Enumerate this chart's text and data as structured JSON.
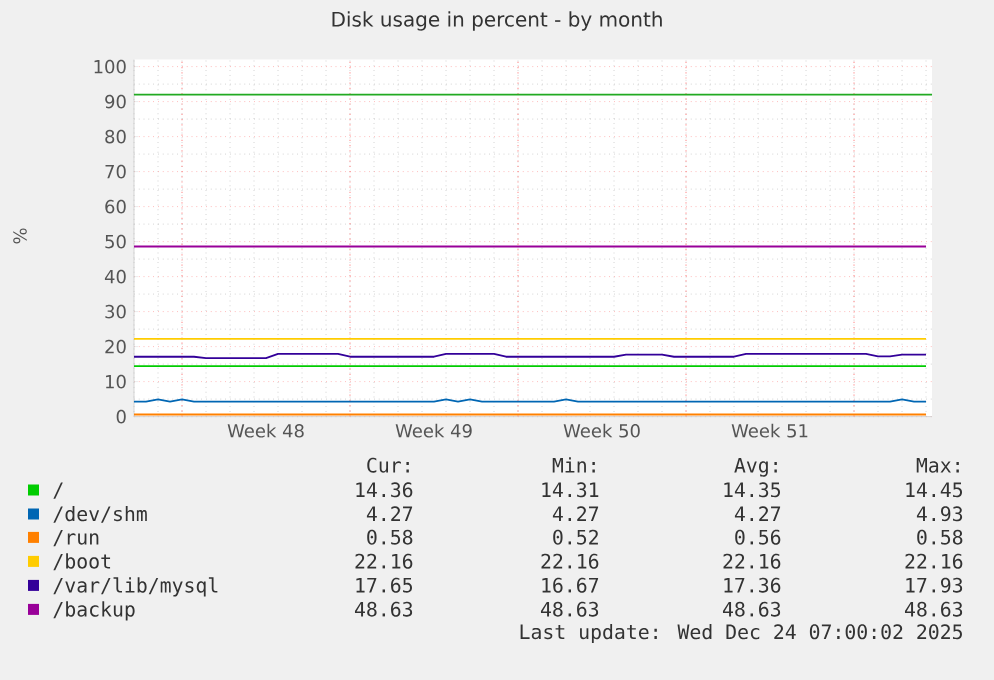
{
  "chart_data": {
    "type": "line",
    "title": "Disk usage in percent - by month",
    "ylabel": "%",
    "categories": [
      null,
      null,
      null,
      null,
      null,
      null,
      null,
      null,
      null,
      null,
      null,
      "Week 48",
      null,
      null,
      null,
      null,
      null,
      null,
      null,
      null,
      null,
      null,
      null,
      null,
      null,
      "Week 49",
      null,
      null,
      null,
      null,
      null,
      null,
      null,
      null,
      null,
      null,
      null,
      null,
      null,
      "Week 50",
      null,
      null,
      null,
      null,
      null,
      null,
      null,
      null,
      null,
      null,
      null,
      null,
      null,
      "Week 51",
      null,
      null,
      null,
      null,
      null,
      null,
      null,
      null,
      null,
      null,
      null,
      null,
      null
    ],
    "ylim": [
      0,
      102
    ],
    "yticks": [
      0,
      10,
      20,
      30,
      40,
      50,
      60,
      70,
      80,
      90,
      100
    ],
    "grid": true,
    "legend": "bottom",
    "marker": "none",
    "line_style": "solid",
    "series": [
      {
        "name": "/",
        "color": "#00cc00",
        "values": [
          14.4,
          14.4,
          14.4,
          14.4,
          14.4,
          14.4,
          14.4,
          14.4,
          14.4,
          14.4,
          14.4,
          14.4,
          14.4,
          14.4,
          14.4,
          14.4,
          14.4,
          14.4,
          14.4,
          14.4,
          14.4,
          14.4,
          14.4,
          14.4,
          14.4,
          14.4,
          14.4,
          14.4,
          14.4,
          14.4,
          14.4,
          14.4,
          14.4,
          14.4,
          14.4,
          14.4,
          14.4,
          14.4,
          14.4,
          14.4,
          14.4,
          14.4,
          14.4,
          14.4,
          14.4,
          14.4,
          14.4,
          14.4,
          14.4,
          14.4,
          14.4,
          14.4,
          14.4,
          14.4,
          14.4,
          14.4,
          14.4,
          14.4,
          14.4,
          14.4,
          14.4,
          14.4,
          14.4,
          14.4,
          14.4,
          14.4,
          14.4
        ]
      },
      {
        "name": "/dev/shm",
        "color": "#0066b3",
        "values": [
          4.3,
          4.3,
          4.9,
          4.3,
          4.9,
          4.3,
          4.3,
          4.3,
          4.3,
          4.3,
          4.3,
          4.3,
          4.3,
          4.3,
          4.3,
          4.3,
          4.3,
          4.3,
          4.3,
          4.3,
          4.3,
          4.3,
          4.3,
          4.3,
          4.3,
          4.3,
          4.9,
          4.3,
          4.9,
          4.3,
          4.3,
          4.3,
          4.3,
          4.3,
          4.3,
          4.3,
          4.9,
          4.3,
          4.3,
          4.3,
          4.3,
          4.3,
          4.3,
          4.3,
          4.3,
          4.3,
          4.3,
          4.3,
          4.3,
          4.3,
          4.3,
          4.3,
          4.3,
          4.3,
          4.3,
          4.3,
          4.3,
          4.3,
          4.3,
          4.3,
          4.3,
          4.3,
          4.3,
          4.3,
          4.9,
          4.3,
          4.3
        ]
      },
      {
        "name": "/run",
        "color": "#ff8000",
        "values": [
          0.6,
          0.6,
          0.6,
          0.6,
          0.6,
          0.6,
          0.6,
          0.6,
          0.6,
          0.6,
          0.6,
          0.6,
          0.6,
          0.6,
          0.6,
          0.6,
          0.6,
          0.6,
          0.6,
          0.6,
          0.6,
          0.6,
          0.6,
          0.6,
          0.6,
          0.6,
          0.6,
          0.6,
          0.6,
          0.6,
          0.6,
          0.6,
          0.6,
          0.6,
          0.6,
          0.6,
          0.6,
          0.6,
          0.6,
          0.6,
          0.6,
          0.6,
          0.6,
          0.6,
          0.6,
          0.6,
          0.6,
          0.6,
          0.6,
          0.6,
          0.6,
          0.6,
          0.6,
          0.6,
          0.6,
          0.6,
          0.6,
          0.6,
          0.6,
          0.6,
          0.6,
          0.6,
          0.6,
          0.6,
          0.6,
          0.6,
          0.6
        ]
      },
      {
        "name": "/boot",
        "color": "#ffcc00",
        "values": [
          22.2,
          22.2,
          22.2,
          22.2,
          22.2,
          22.2,
          22.2,
          22.2,
          22.2,
          22.2,
          22.2,
          22.2,
          22.2,
          22.2,
          22.2,
          22.2,
          22.2,
          22.2,
          22.2,
          22.2,
          22.2,
          22.2,
          22.2,
          22.2,
          22.2,
          22.2,
          22.2,
          22.2,
          22.2,
          22.2,
          22.2,
          22.2,
          22.2,
          22.2,
          22.2,
          22.2,
          22.2,
          22.2,
          22.2,
          22.2,
          22.2,
          22.2,
          22.2,
          22.2,
          22.2,
          22.2,
          22.2,
          22.2,
          22.2,
          22.2,
          22.2,
          22.2,
          22.2,
          22.2,
          22.2,
          22.2,
          22.2,
          22.2,
          22.2,
          22.2,
          22.2,
          22.2,
          22.2,
          22.2,
          22.2,
          22.2,
          22.2
        ]
      },
      {
        "name": "/var/lib/mysql",
        "color": "#330099",
        "values": [
          17.1,
          17.1,
          17.1,
          17.1,
          17.1,
          17.1,
          16.7,
          16.7,
          16.7,
          16.7,
          16.7,
          16.7,
          17.9,
          17.9,
          17.9,
          17.9,
          17.9,
          17.9,
          17.1,
          17.1,
          17.1,
          17.1,
          17.1,
          17.1,
          17.1,
          17.1,
          17.9,
          17.9,
          17.9,
          17.9,
          17.9,
          17.1,
          17.1,
          17.1,
          17.1,
          17.1,
          17.1,
          17.1,
          17.1,
          17.1,
          17.1,
          17.7,
          17.7,
          17.7,
          17.7,
          17.1,
          17.1,
          17.1,
          17.1,
          17.1,
          17.1,
          17.9,
          17.9,
          17.9,
          17.9,
          17.9,
          17.9,
          17.9,
          17.9,
          17.9,
          17.9,
          17.9,
          17.2,
          17.2,
          17.7,
          17.7,
          17.7
        ]
      },
      {
        "name": "/backup",
        "color": "#990099",
        "values": [
          48.6,
          48.6,
          48.6,
          48.6,
          48.6,
          48.6,
          48.6,
          48.6,
          48.6,
          48.6,
          48.6,
          48.6,
          48.6,
          48.6,
          48.6,
          48.6,
          48.6,
          48.6,
          48.6,
          48.6,
          48.6,
          48.6,
          48.6,
          48.6,
          48.6,
          48.6,
          48.6,
          48.6,
          48.6,
          48.6,
          48.6,
          48.6,
          48.6,
          48.6,
          48.6,
          48.6,
          48.6,
          48.6,
          48.6,
          48.6,
          48.6,
          48.6,
          48.6,
          48.6,
          48.6,
          48.6,
          48.6,
          48.6,
          48.6,
          48.6,
          48.6,
          48.6,
          48.6,
          48.6,
          48.6,
          48.6,
          48.6,
          48.6,
          48.6,
          48.6,
          48.6,
          48.6,
          48.6,
          48.6,
          48.6,
          48.6,
          48.6
        ]
      }
    ],
    "ref_lines": [
      {
        "axis": "y",
        "value": 92,
        "color": "#22aa22",
        "line_style": "solid"
      }
    ],
    "annotations": [
      "Cur:",
      "Min:",
      "Avg:",
      "Max:",
      "14.36",
      "14.31",
      "14.35",
      "14.45",
      "4.27",
      "4.27",
      "4.27",
      "4.93",
      "0.58",
      "0.52",
      "0.56",
      "0.58",
      "22.16",
      "22.16",
      "22.16",
      "22.16",
      "17.65",
      "16.67",
      "17.36",
      "17.93",
      "48.63",
      "48.63",
      "48.63",
      "48.63",
      "Last update: Wed Dec 24 07:00:02 2025"
    ]
  }
}
